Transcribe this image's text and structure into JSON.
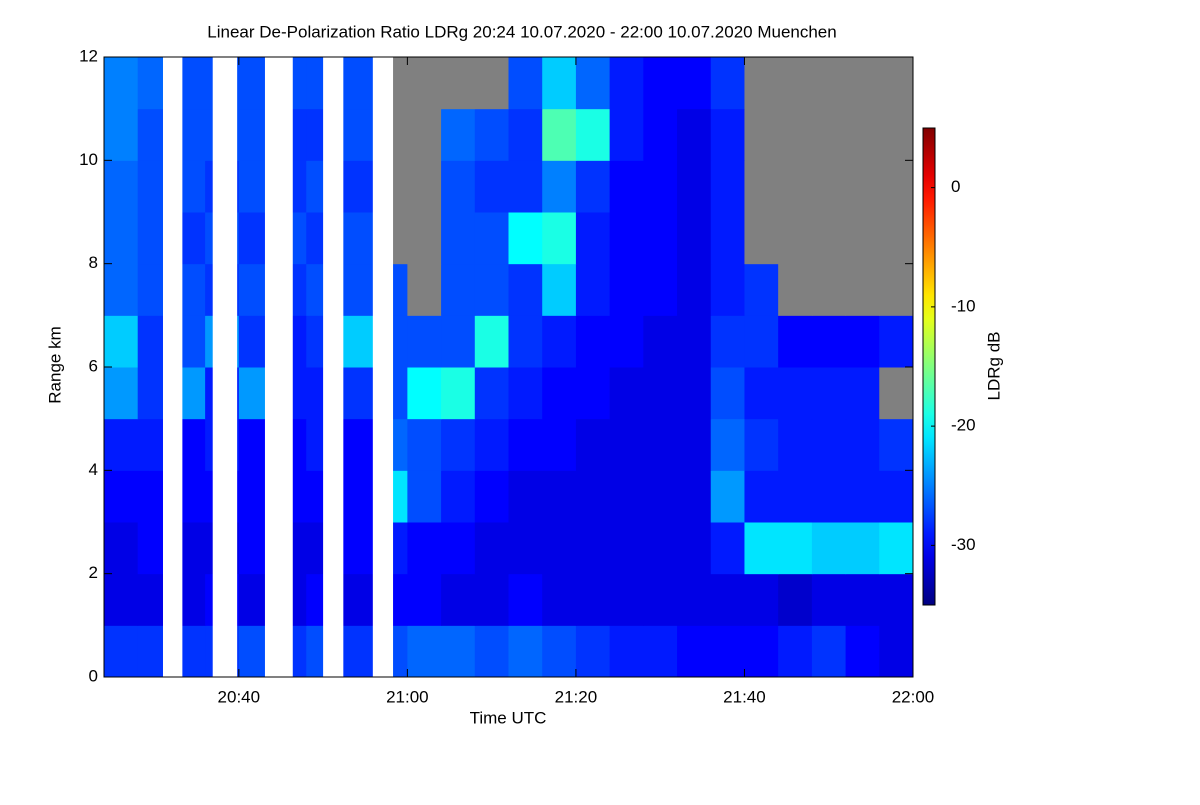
{
  "chart_data": {
    "type": "heatmap",
    "title": "Linear De-Polarization Ratio LDRg   20:24 10.07.2020 - 22:00 10.07.2020 Muenchen",
    "xlabel": "Time UTC",
    "ylabel": "Range km",
    "colorbar_label": "LDRg dB",
    "colormap": "jet",
    "no_signal_color": "#808080",
    "gap_color": "#ffffff",
    "xlim": [
      24,
      120
    ],
    "xticks": [
      {
        "value": 40,
        "label": "20:40"
      },
      {
        "value": 60,
        "label": "21:00"
      },
      {
        "value": 80,
        "label": "21:20"
      },
      {
        "value": 100,
        "label": "21:40"
      },
      {
        "value": 120,
        "label": "22:00"
      }
    ],
    "ylim": [
      0,
      12
    ],
    "yticks": [
      0,
      2,
      4,
      6,
      8,
      10,
      12
    ],
    "clim": [
      -35,
      5
    ],
    "cticks": [
      0,
      -10,
      -20,
      -30
    ],
    "x_bins": [
      24,
      28,
      32,
      36,
      40,
      44,
      48,
      52,
      56,
      60,
      64,
      68,
      72,
      76,
      80,
      84,
      88,
      92,
      96,
      100,
      104,
      108,
      112,
      116,
      120
    ],
    "y_bins": [
      0,
      1,
      2,
      3,
      4,
      5,
      6,
      7,
      8,
      9,
      10,
      11,
      12
    ],
    "values": [
      [
        -28,
        -28,
        -28,
        -28,
        -27,
        -28,
        -27,
        -28,
        -27,
        -26,
        -26,
        -27,
        -26,
        -27,
        -28,
        -29,
        -29,
        -30,
        -30,
        -30,
        -29,
        -28,
        -30,
        -31
      ],
      [
        -31,
        -31,
        -31,
        -30,
        -31,
        -31,
        -30,
        -31,
        -30,
        -30,
        -31,
        -31,
        -30,
        -31,
        -31,
        -31,
        -31,
        -31,
        -31,
        -31,
        -32,
        -31,
        -31,
        -31
      ],
      [
        -31,
        -30,
        -31,
        -31,
        -30,
        -31,
        -31,
        -30,
        -29,
        -30,
        -30,
        -31,
        -31,
        -31,
        -31,
        -31,
        -31,
        -31,
        -29,
        -21,
        -21,
        -22,
        -22,
        -21
      ],
      [
        -30,
        -30,
        -30,
        -30,
        -30,
        -30,
        -30,
        -30,
        -21,
        -27,
        -29,
        -30,
        -31,
        -31,
        -31,
        -31,
        -31,
        -31,
        -24,
        -29,
        -29,
        -29,
        -29,
        -29
      ],
      [
        -29,
        -29,
        -30,
        -29,
        -30,
        -30,
        -29,
        -30,
        -26,
        -27,
        -28,
        -29,
        -30,
        -30,
        -31,
        -31,
        -31,
        -31,
        -26,
        -28,
        -29,
        -29,
        -29,
        -28
      ],
      [
        -24,
        -28,
        -24,
        -29,
        -24,
        -29,
        -29,
        -28,
        -27,
        -20,
        -19,
        -28,
        -29,
        -30,
        -30,
        -31,
        -31,
        -31,
        -27,
        -29,
        -29,
        -29,
        -29,
        null
      ],
      [
        -22,
        -28,
        -27,
        -24,
        -28,
        -29,
        -28,
        -22,
        -27,
        -27,
        -27,
        -19,
        -28,
        -29,
        -30,
        -30,
        -31,
        -31,
        -28,
        -28,
        -30,
        -30,
        -30,
        -29
      ],
      [
        -26,
        -27,
        -27,
        -28,
        -27,
        -28,
        -27,
        -27,
        -27,
        null,
        -27,
        -27,
        -28,
        -22,
        -29,
        -30,
        -30,
        -31,
        -29,
        -28,
        null,
        null,
        null,
        null
      ],
      [
        -26,
        -27,
        -28,
        -27,
        -28,
        -27,
        -28,
        -27,
        null,
        null,
        -27,
        -27,
        -20,
        -19,
        -29,
        -30,
        -30,
        -31,
        -29,
        null,
        null,
        null,
        null,
        null
      ],
      [
        -26,
        -27,
        -27,
        -28,
        -27,
        -28,
        -27,
        -28,
        null,
        null,
        -27,
        -28,
        -28,
        -25,
        -28,
        -30,
        -30,
        -31,
        -29,
        null,
        null,
        null,
        null,
        null
      ],
      [
        -25,
        -27,
        -27,
        -27,
        -27,
        -28,
        -28,
        -27,
        null,
        null,
        -26,
        -27,
        -28,
        -17,
        -19,
        -29,
        -30,
        -31,
        -29,
        null,
        null,
        null,
        null,
        null
      ],
      [
        -25,
        -26,
        -27,
        -27,
        -27,
        -27,
        -27,
        -27,
        null,
        null,
        null,
        null,
        -27,
        -22,
        -26,
        -29,
        -30,
        -30,
        -28,
        null,
        null,
        null,
        null,
        null
      ]
    ],
    "gaps": [
      [
        31.0,
        33.3
      ],
      [
        36.9,
        39.8
      ],
      [
        43.1,
        46.4
      ],
      [
        50.0,
        52.4
      ],
      [
        55.9,
        58.3
      ]
    ]
  }
}
